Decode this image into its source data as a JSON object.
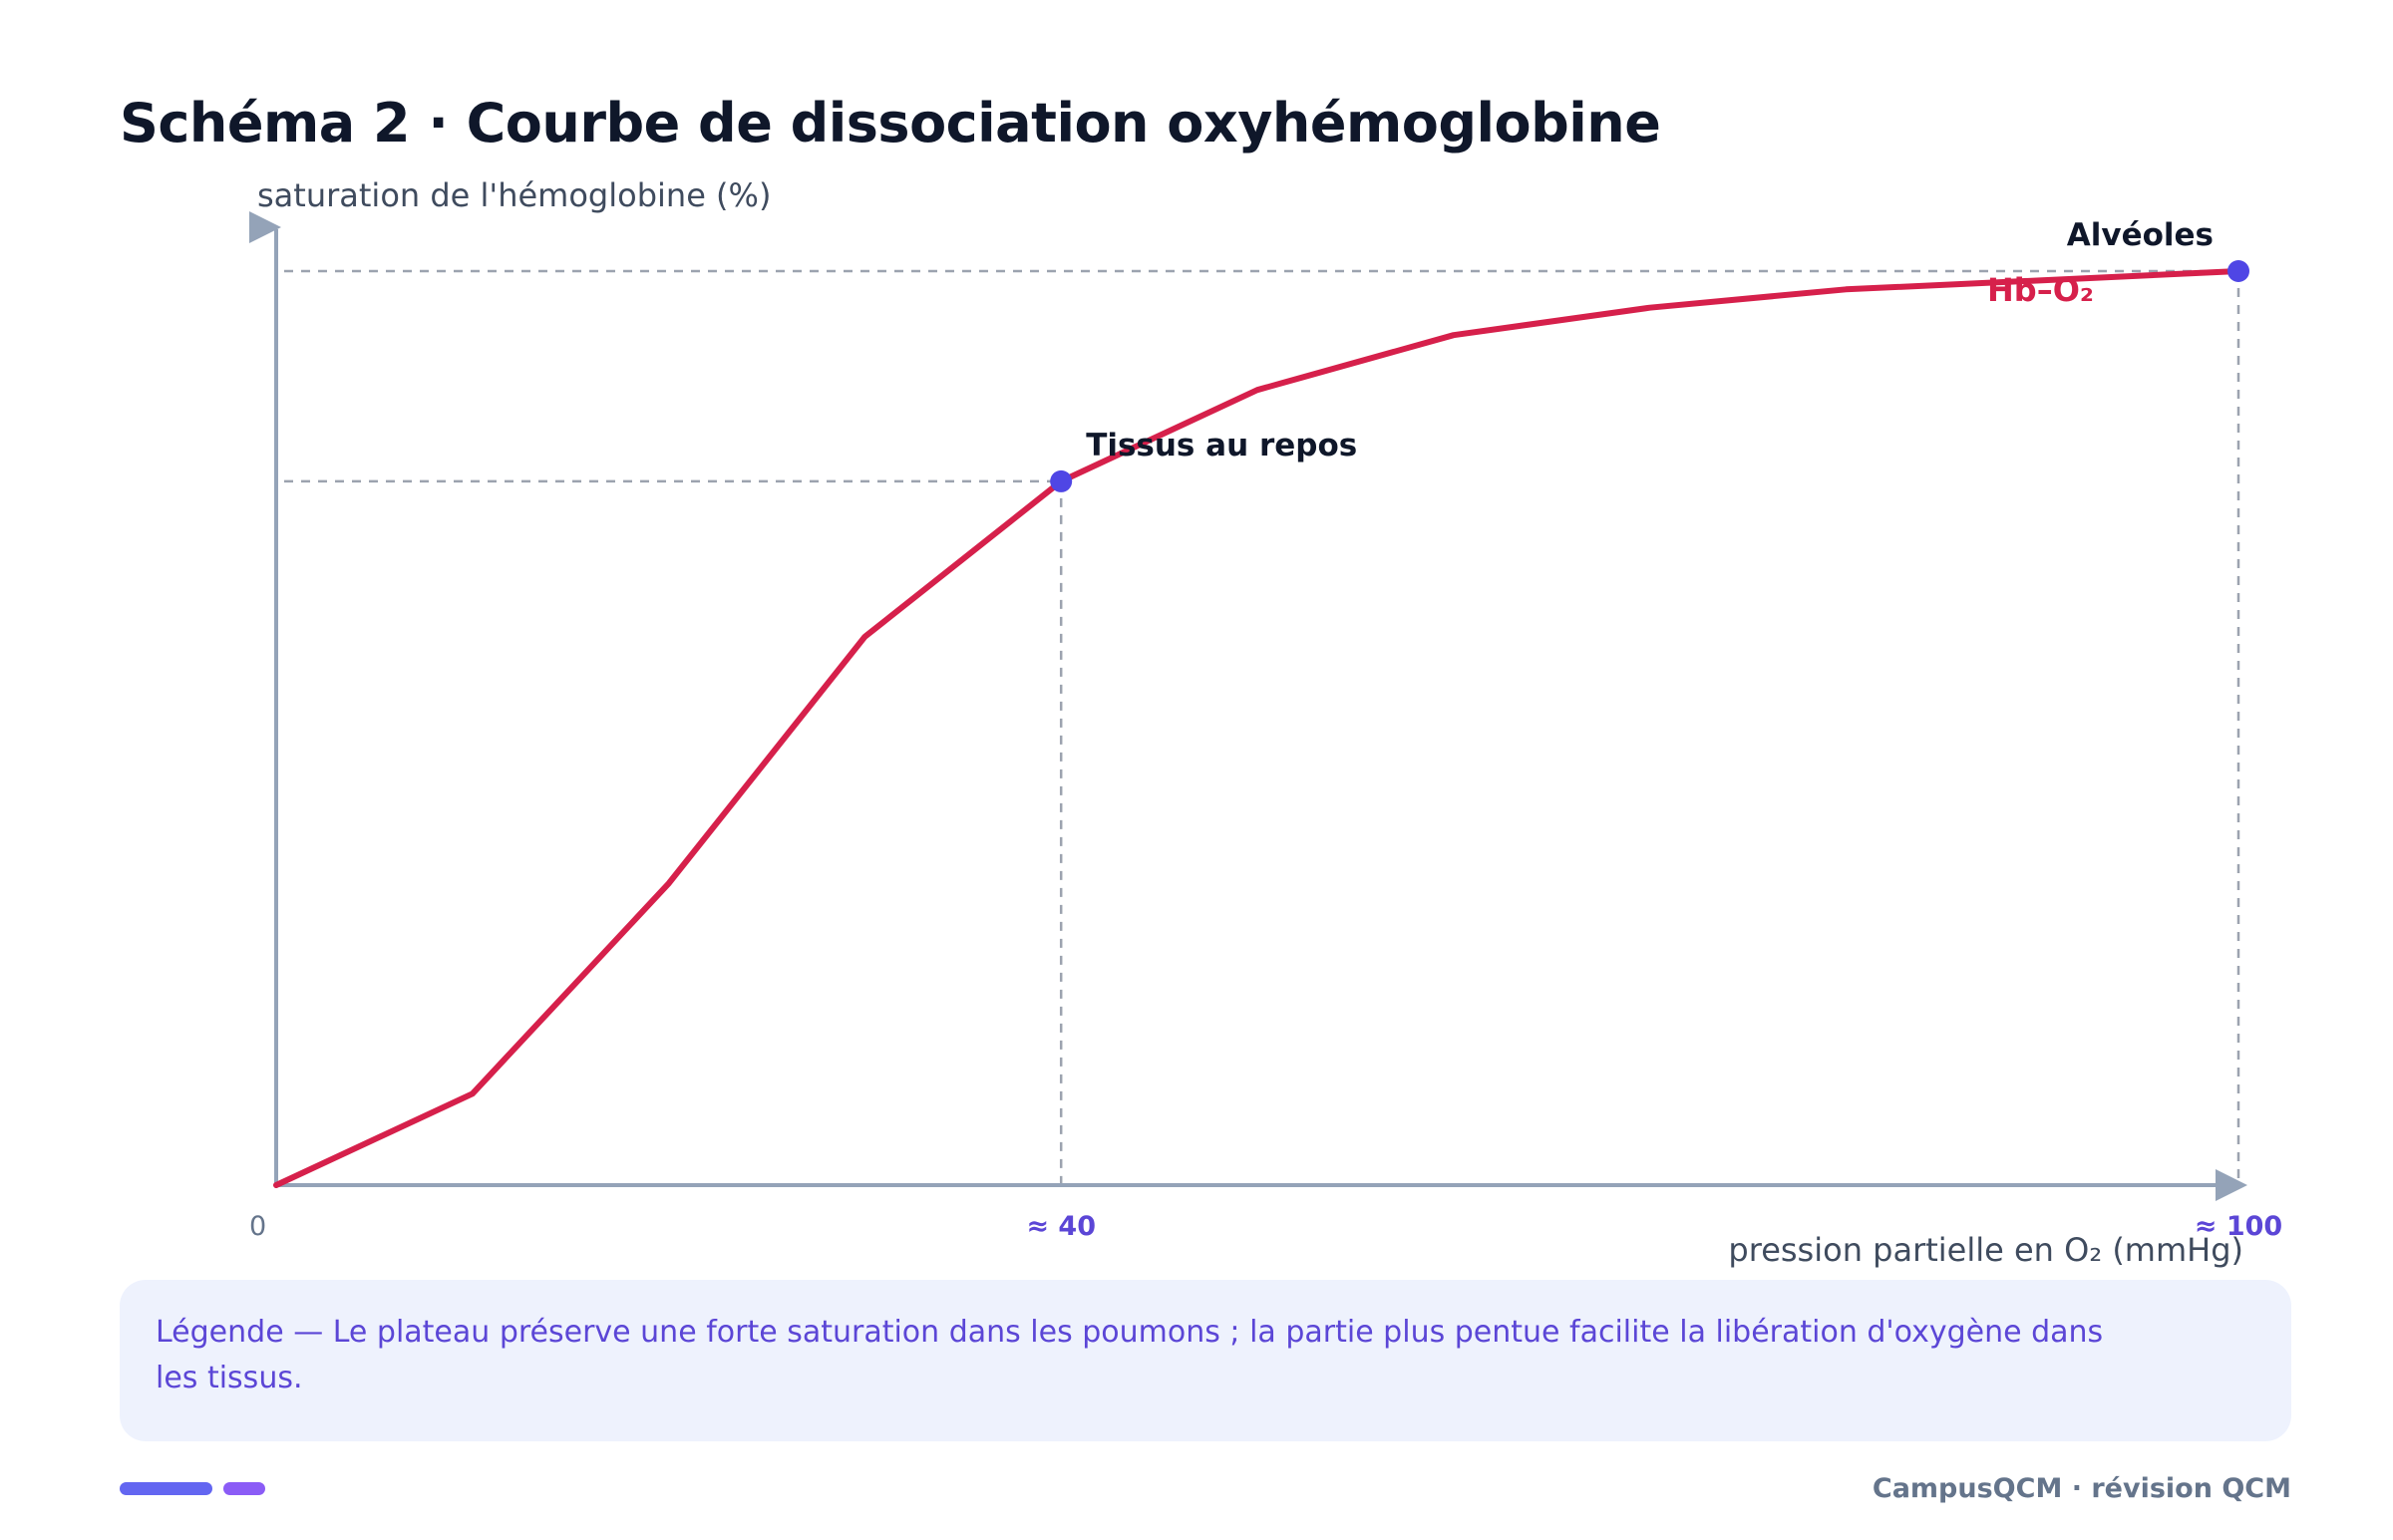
{
  "header": {
    "title": "Schéma 2 · Courbe de dissociation oxyhémoglobine"
  },
  "chart_data": {
    "type": "line",
    "title": "Schéma 2 · Courbe de dissociation oxyhémoglobine",
    "ylabel": "saturation de l'hémoglobine (%)",
    "xlabel": "pression partielle en O₂ (mmHg)",
    "xlim": [
      0,
      100
    ],
    "ylim": [
      0,
      100
    ],
    "x_ticks": [
      {
        "value": 0,
        "label": "0"
      },
      {
        "value": 40,
        "label": "≈ 40"
      },
      {
        "value": 100,
        "label": "≈ 100"
      }
    ],
    "grid": false,
    "series": [
      {
        "name": "Hb–O₂",
        "color": "#d6204b",
        "x": [
          0,
          10,
          20,
          30,
          40,
          50,
          60,
          70,
          80,
          90,
          100
        ],
        "y": [
          0,
          10,
          33,
          60,
          77,
          87,
          93,
          96,
          98,
          99,
          100
        ]
      }
    ],
    "annotations": [
      {
        "label": "Tissus au repos",
        "x": 40,
        "y": 77
      },
      {
        "label": "Alvéoles",
        "x": 100,
        "y": 100
      }
    ],
    "colors": {
      "axis": "#94a3b8",
      "guide": "#9ca3af",
      "marker": "#4f46e5",
      "tick_highlight": "#5b46d6"
    }
  },
  "legend": {
    "text": "Légende — Le plateau préserve une forte saturation dans les poumons ; la partie plus pentue facilite la libération d'oxygène dans les tissus."
  },
  "footer": {
    "brand": "CampusQCM · révision QCM"
  },
  "decor": {
    "pill_colors": [
      "#6366f1",
      "#8b5cf6"
    ]
  }
}
